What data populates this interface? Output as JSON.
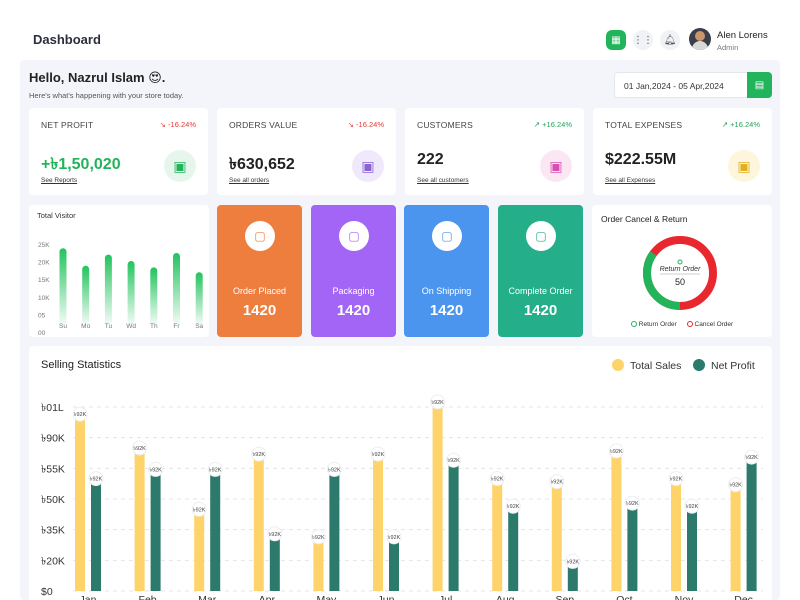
{
  "header": {
    "title": "Dashboard",
    "user": {
      "name": "Alen Lorens",
      "role": "Admin"
    },
    "icons": [
      "calendar-icon",
      "grid-icon",
      "bell-icon"
    ]
  },
  "greeting": {
    "title": "Hello, Nazrul Islam 😍.",
    "subtitle": "Here's what's happening with your store today.",
    "date_range": "01 Jan,2024 - 05 Apr,2024"
  },
  "kpis": [
    {
      "label": "NET PROFIT",
      "change": "↘ -16.24%",
      "trend": "down",
      "value": "+৳1,50,020",
      "link": "See Reports",
      "icon_color": "#22b45a",
      "icon_bg": "#e7f6ec"
    },
    {
      "label": "ORDERS VALUE",
      "change": "↘ -16.24%",
      "trend": "down",
      "value": "৳630,652",
      "link": "See all orders",
      "icon_color": "#8a63d2",
      "icon_bg": "#efe9fb"
    },
    {
      "label": "CUSTOMERS",
      "change": "↗ +16.24%",
      "trend": "up",
      "value": "222",
      "link": "See all customers",
      "icon_color": "#d94fb0",
      "icon_bg": "#fbe7f4"
    },
    {
      "label": "TOTAL EXPENSES",
      "change": "↗ +16.24%",
      "trend": "up",
      "value": "$222.55M",
      "link": "See all Expenses",
      "icon_color": "#e0b020",
      "icon_bg": "#fdf5dc"
    }
  ],
  "total_visitor": {
    "title": "Total Visitor",
    "y_ticks": [
      "25K",
      "20K",
      "15K",
      "10K",
      "05",
      "00"
    ],
    "days": [
      "Su",
      "Mo",
      "Tu",
      "Wd",
      "Th",
      "Fr",
      "Sa"
    ],
    "values": [
      24,
      18.5,
      22,
      20,
      18,
      22.5,
      16.5
    ],
    "ymax": 25
  },
  "status_tiles": [
    {
      "label": "Order Placed",
      "value": "1420",
      "color": "#ee7e3e",
      "icon": "box-icon"
    },
    {
      "label": "Packaging",
      "value": "1420",
      "color": "#a265f5",
      "icon": "package-icon"
    },
    {
      "label": "On Shipping",
      "value": "1420",
      "color": "#4b95ee",
      "icon": "truck-icon"
    },
    {
      "label": "Complete Order",
      "value": "1420",
      "color": "#25ae8a",
      "icon": "check-box-icon"
    }
  ],
  "order_cancel": {
    "title": "Order Cancel & Return",
    "center_label": "Return Order",
    "center_value": "50",
    "legend": [
      {
        "label": "Return Order",
        "color": "#22b45a"
      },
      {
        "label": "Cancel Order",
        "color": "#e8282e"
      }
    ],
    "return_fraction": 0.35,
    "colors": {
      "return": "#22b45a",
      "cancel": "#e8282e"
    }
  },
  "selling_statistics": {
    "title": "Selling Statistics",
    "legend": [
      {
        "label": "Total Sales",
        "color": "#fdd36a"
      },
      {
        "label": "Net Profit",
        "color": "#2b7a6b"
      }
    ],
    "chart_data": {
      "type": "bar",
      "categories": [
        "Jan",
        "Feb",
        "Mar",
        "Apr",
        "May",
        "Jun",
        "Jul",
        "Aug",
        "Sep",
        "Oct",
        "Nov",
        "Dec"
      ],
      "y_tick_labels": [
        "৳01L",
        "৳90K",
        "৳55K",
        "৳50K",
        "৳35K",
        "৳20K",
        "$0"
      ],
      "value_label": "৳92K",
      "series": [
        {
          "name": "Total Sales",
          "values": [
            5.7,
            4.6,
            2.6,
            4.4,
            1.7,
            4.4,
            6.1,
            3.6,
            3.5,
            4.5,
            3.6,
            3.4
          ]
        },
        {
          "name": "Net Profit",
          "values": [
            3.6,
            3.9,
            3.9,
            1.8,
            3.9,
            1.7,
            4.2,
            2.7,
            0.9,
            2.8,
            2.7,
            4.3
          ]
        }
      ],
      "ylim": [
        0,
        6
      ]
    }
  }
}
